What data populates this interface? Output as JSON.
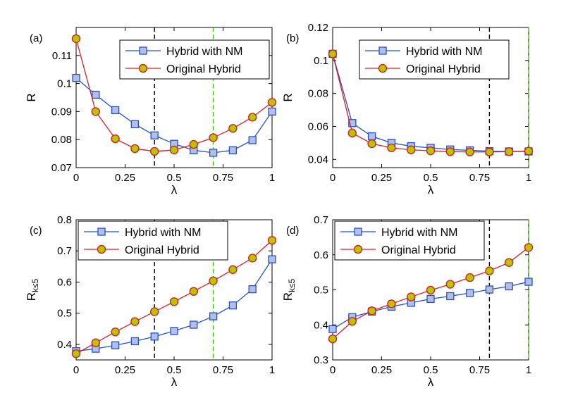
{
  "chart_data": [
    {
      "type": "line",
      "panel_label": "(a)",
      "xlabel": "λ",
      "ylabel": "R",
      "xlim": [
        0,
        1
      ],
      "ylim": [
        0.07,
        0.12
      ],
      "xticks": [
        0,
        0.25,
        0.5,
        0.75,
        1
      ],
      "xtick_labels": [
        "0",
        "0.25",
        "0.5",
        "0.75",
        "1"
      ],
      "yticks": [
        0.07,
        0.08,
        0.09,
        0.1,
        0.11
      ],
      "ytick_labels": [
        "0.07",
        "0.08",
        "0.09",
        "0.1",
        "0.11"
      ],
      "vlines": [
        {
          "x": 0.4,
          "color": "#000000"
        },
        {
          "x": 0.7,
          "color": "#33cc00"
        }
      ],
      "legend_position": "top-right",
      "x": [
        0,
        0.1,
        0.2,
        0.3,
        0.4,
        0.5,
        0.6,
        0.7,
        0.8,
        0.9,
        1
      ],
      "series": [
        {
          "name": "Hybrid with NM",
          "line_color": "#1f4fe0",
          "marker": "square",
          "marker_fill": "#b3bfe3",
          "values": [
            0.102,
            0.096,
            0.0905,
            0.0855,
            0.0815,
            0.0785,
            0.0762,
            0.0753,
            0.0762,
            0.0798,
            0.09
          ]
        },
        {
          "name": "Original Hybrid",
          "line_color": "#e41a1c",
          "marker": "circle",
          "marker_fill": "#b3c800",
          "values": [
            0.116,
            0.09,
            0.0803,
            0.0768,
            0.0758,
            0.0763,
            0.0783,
            0.0807,
            0.084,
            0.088,
            0.0933
          ]
        }
      ]
    },
    {
      "type": "line",
      "panel_label": "(b)",
      "xlabel": "λ",
      "ylabel": "R",
      "xlim": [
        0,
        1
      ],
      "ylim": [
        0.035,
        0.12
      ],
      "xticks": [
        0,
        0.25,
        0.5,
        0.75,
        1
      ],
      "xtick_labels": [
        "0",
        "0.25",
        "0.5",
        "0.75",
        "1"
      ],
      "yticks": [
        0.04,
        0.06,
        0.08,
        0.1,
        0.12
      ],
      "ytick_labels": [
        "0.04",
        "0.06",
        "0.08",
        "0.1",
        "0.12"
      ],
      "vlines": [
        {
          "x": 0.8,
          "color": "#000000"
        },
        {
          "x": 1.0,
          "color": "#33cc00"
        }
      ],
      "legend_position": "top-right",
      "x": [
        0,
        0.1,
        0.2,
        0.3,
        0.4,
        0.5,
        0.6,
        0.7,
        0.8,
        0.9,
        1
      ],
      "series": [
        {
          "name": "Hybrid with NM",
          "line_color": "#1f4fe0",
          "marker": "square",
          "marker_fill": "#b3bfe3",
          "values": [
            0.104,
            0.062,
            0.054,
            0.05,
            0.048,
            0.047,
            0.046,
            0.0455,
            0.045,
            0.0448,
            0.0448
          ]
        },
        {
          "name": "Original Hybrid",
          "line_color": "#e41a1c",
          "marker": "circle",
          "marker_fill": "#b3c800",
          "values": [
            0.104,
            0.056,
            0.0495,
            0.047,
            0.0458,
            0.0452,
            0.0447,
            0.0445,
            0.0445,
            0.0447,
            0.045
          ]
        }
      ]
    },
    {
      "type": "line",
      "panel_label": "(c)",
      "xlabel": "λ",
      "ylabel": "R",
      "ylabel_sub": "k≤5",
      "xlim": [
        0,
        1
      ],
      "ylim": [
        0.35,
        0.8
      ],
      "xticks": [
        0,
        0.25,
        0.5,
        0.75,
        1
      ],
      "xtick_labels": [
        "0",
        "0.25",
        "0.5",
        "0.75",
        "1"
      ],
      "yticks": [
        0.4,
        0.5,
        0.6,
        0.7,
        0.8
      ],
      "ytick_labels": [
        "0.4",
        "0.5",
        "0.6",
        "0.7",
        "0.8"
      ],
      "vlines": [
        {
          "x": 0.4,
          "color": "#000000"
        },
        {
          "x": 0.7,
          "color": "#33cc00"
        }
      ],
      "legend_position": "top-left",
      "x": [
        0,
        0.1,
        0.2,
        0.3,
        0.4,
        0.5,
        0.6,
        0.7,
        0.8,
        0.9,
        1
      ],
      "series": [
        {
          "name": "Hybrid with NM",
          "line_color": "#1f4fe0",
          "marker": "square",
          "marker_fill": "#b3bfe3",
          "values": [
            0.378,
            0.386,
            0.397,
            0.41,
            0.425,
            0.443,
            0.463,
            0.49,
            0.525,
            0.577,
            0.673
          ]
        },
        {
          "name": "Original Hybrid",
          "line_color": "#e41a1c",
          "marker": "circle",
          "marker_fill": "#b3c800",
          "values": [
            0.37,
            0.405,
            0.44,
            0.473,
            0.505,
            0.537,
            0.57,
            0.604,
            0.64,
            0.677,
            0.734
          ]
        }
      ]
    },
    {
      "type": "line",
      "panel_label": "(d)",
      "xlabel": "λ",
      "ylabel": "R",
      "ylabel_sub": "k≤5",
      "xlim": [
        0,
        1
      ],
      "ylim": [
        0.3,
        0.7
      ],
      "xticks": [
        0,
        0.25,
        0.5,
        0.75,
        1
      ],
      "xtick_labels": [
        "0",
        "0.25",
        "0.5",
        "0.75",
        "1"
      ],
      "yticks": [
        0.3,
        0.4,
        0.5,
        0.6,
        0.7
      ],
      "ytick_labels": [
        "0.3",
        "0.4",
        "0.5",
        "0.6",
        "0.7"
      ],
      "vlines": [
        {
          "x": 0.8,
          "color": "#000000"
        },
        {
          "x": 1.0,
          "color": "#33cc00"
        }
      ],
      "legend_position": "top-left",
      "x": [
        0,
        0.1,
        0.2,
        0.3,
        0.4,
        0.5,
        0.6,
        0.7,
        0.8,
        0.9,
        1
      ],
      "series": [
        {
          "name": "Hybrid with NM",
          "line_color": "#1f4fe0",
          "marker": "square",
          "marker_fill": "#b3bfe3",
          "values": [
            0.388,
            0.422,
            0.438,
            0.452,
            0.463,
            0.474,
            0.482,
            0.491,
            0.501,
            0.51,
            0.523
          ]
        },
        {
          "name": "Original Hybrid",
          "line_color": "#e41a1c",
          "marker": "circle",
          "marker_fill": "#b3c800",
          "values": [
            0.36,
            0.41,
            0.44,
            0.46,
            0.48,
            0.499,
            0.516,
            0.535,
            0.554,
            0.578,
            0.621
          ]
        }
      ]
    }
  ]
}
